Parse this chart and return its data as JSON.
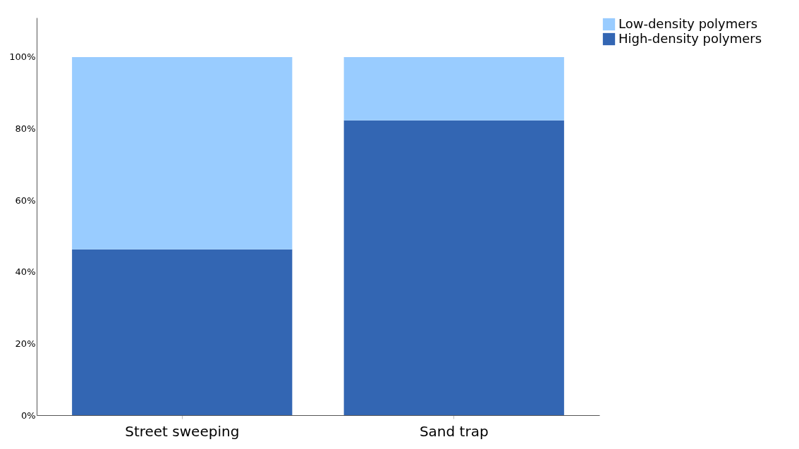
{
  "chart_data": {
    "type": "bar",
    "stacked": true,
    "categories": [
      "Street sweeping",
      "Sand trap"
    ],
    "series": [
      {
        "name": "High-density polymers",
        "color": "#3366b3",
        "values": [
          46.3,
          82.3
        ]
      },
      {
        "name": "Low-density polymers",
        "color": "#99ccff",
        "values": [
          53.7,
          17.7
        ]
      }
    ],
    "ylim": [
      0,
      111
    ],
    "yticks": [
      {
        "value": 0,
        "label": "0%"
      },
      {
        "value": 20,
        "label": "20%"
      },
      {
        "value": 40,
        "label": "40%"
      },
      {
        "value": 60,
        "label": "60%"
      },
      {
        "value": 80,
        "label": "80%"
      },
      {
        "value": 100,
        "label": "100%"
      }
    ],
    "grid": false,
    "legend": "top right"
  }
}
